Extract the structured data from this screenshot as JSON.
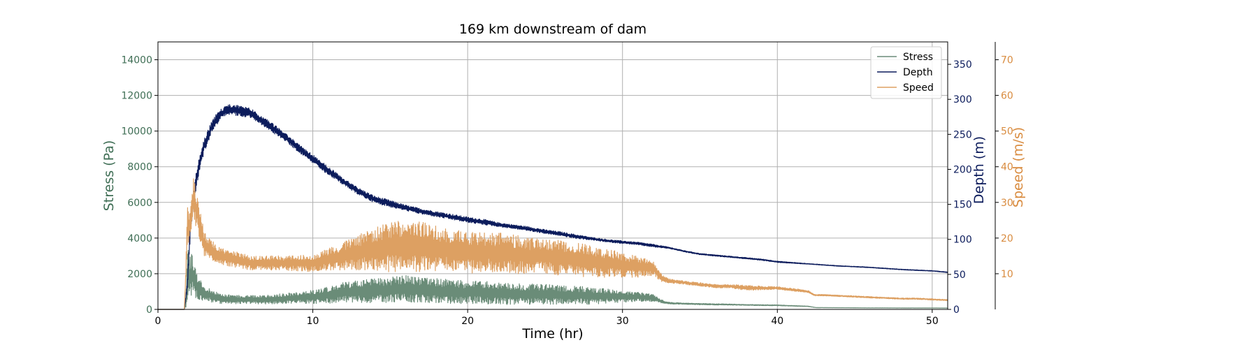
{
  "chart_data": {
    "type": "line",
    "title": "169 km downstream of dam",
    "xlabel": "Time (hr)",
    "xlim": [
      0,
      51
    ],
    "x_ticks": [
      0,
      10,
      20,
      30,
      40,
      50
    ],
    "grid": true,
    "legend_position": "top-right",
    "axes": [
      {
        "id": "stress",
        "side": "left",
        "label": "Stress (Pa)",
        "color": "#3f6e55",
        "ylim": [
          0,
          15000
        ],
        "ticks": [
          0,
          2000,
          4000,
          6000,
          8000,
          10000,
          12000,
          14000
        ]
      },
      {
        "id": "depth",
        "side": "right",
        "label": "Depth (m)",
        "color": "#0c1c5c",
        "ylim": [
          0,
          382
        ],
        "ticks": [
          0,
          50,
          100,
          150,
          200,
          250,
          300,
          350
        ]
      },
      {
        "id": "speed",
        "side": "right-outer",
        "label": "Speed (m/s)",
        "color": "#d98c40",
        "ylim": [
          0,
          75
        ],
        "ticks": [
          10,
          20,
          30,
          40,
          50,
          60,
          70
        ]
      }
    ],
    "series": [
      {
        "name": "Stress",
        "axis": "stress",
        "color": "#6a8c78",
        "x": [
          0,
          1.7,
          1.8,
          1.9,
          2.0,
          2.2,
          2.5,
          3,
          4,
          5,
          6,
          7,
          8,
          9,
          10,
          11,
          12,
          13,
          14,
          15,
          16,
          17,
          18,
          19,
          20,
          21,
          22,
          23,
          24,
          25,
          26,
          27,
          28,
          29,
          30,
          31,
          32,
          32.5,
          33,
          34,
          35,
          36,
          37,
          38,
          39,
          40,
          41,
          42,
          42.5,
          43,
          44,
          45,
          46,
          47,
          48,
          49,
          50,
          51
        ],
        "y": [
          0,
          0,
          300,
          2000,
          1700,
          2000,
          1300,
          900,
          600,
          550,
          550,
          550,
          600,
          650,
          700,
          800,
          950,
          1000,
          1050,
          1100,
          1150,
          1100,
          1050,
          1000,
          950,
          950,
          900,
          850,
          850,
          850,
          800,
          800,
          750,
          750,
          700,
          700,
          650,
          450,
          350,
          320,
          300,
          280,
          270,
          250,
          240,
          230,
          200,
          170,
          100,
          100,
          95,
          90,
          85,
          85,
          80,
          80,
          80,
          75
        ],
        "amp": [
          0,
          0,
          200,
          1800,
          1400,
          1100,
          700,
          420,
          280,
          240,
          240,
          250,
          280,
          320,
          380,
          480,
          560,
          620,
          680,
          720,
          750,
          720,
          700,
          680,
          660,
          640,
          620,
          600,
          580,
          560,
          540,
          520,
          480,
          420,
          300,
          260,
          200,
          90,
          50,
          40,
          40,
          35,
          35,
          30,
          30,
          25,
          20,
          15,
          5,
          5,
          5,
          5,
          5,
          5,
          5,
          5,
          5,
          5
        ]
      },
      {
        "name": "Depth",
        "axis": "depth",
        "color": "#0c1c5c",
        "x": [
          0,
          1.7,
          1.9,
          2.1,
          2.5,
          3.0,
          3.5,
          4.0,
          4.5,
          5.0,
          6.0,
          7.0,
          8.0,
          9.0,
          10,
          11,
          12,
          13,
          14,
          15,
          16,
          17,
          18,
          19,
          20,
          21,
          22,
          23,
          24,
          25,
          26,
          27,
          28,
          29,
          30,
          31,
          32,
          33,
          34,
          35,
          36,
          37,
          38,
          39,
          40,
          42,
          44,
          46,
          48,
          50,
          51
        ],
        "y": [
          0,
          0,
          35,
          120,
          190,
          235,
          262,
          278,
          285,
          285,
          280,
          265,
          250,
          232,
          215,
          198,
          182,
          168,
          157,
          151,
          145,
          140,
          136,
          132,
          128,
          125,
          121,
          118,
          115,
          111,
          108,
          104,
          101,
          98,
          96,
          94,
          91,
          88,
          83,
          79,
          77,
          75,
          73,
          71,
          68,
          65,
          62,
          60,
          57,
          55,
          53
        ],
        "amp": [
          0,
          0,
          6,
          12,
          12,
          10,
          9,
          8,
          8,
          8,
          7,
          7,
          6,
          6,
          6,
          6,
          5,
          5,
          5,
          5,
          4,
          4,
          4,
          4,
          4,
          4,
          3,
          3,
          3,
          3,
          3,
          3,
          2,
          2,
          2,
          2,
          2,
          1,
          1,
          1,
          1,
          1,
          1,
          1,
          1,
          0.5,
          0.5,
          0.5,
          0.5,
          0.5,
          0.5
        ]
      },
      {
        "name": "Speed",
        "axis": "speed",
        "color": "#dda062",
        "x": [
          0,
          1.7,
          1.8,
          1.9,
          2.0,
          2.3,
          2.6,
          3,
          4,
          5,
          6,
          7,
          8,
          9,
          10,
          11,
          12,
          13,
          14,
          15,
          16,
          17,
          18,
          19,
          20,
          21,
          22,
          23,
          24,
          25,
          26,
          27,
          28,
          29,
          30,
          31,
          32,
          32.6,
          33,
          34,
          35,
          36,
          37,
          38,
          39,
          40,
          41,
          42,
          42.4,
          43,
          44,
          45,
          46,
          47,
          48,
          49,
          50,
          51
        ],
        "y": [
          0,
          0,
          10,
          25,
          22,
          31,
          26,
          18,
          15,
          14,
          13,
          13,
          13,
          13,
          13,
          14,
          15,
          16,
          17,
          17.5,
          18,
          17.5,
          17,
          16.5,
          16,
          16,
          16,
          15.5,
          15,
          15,
          14.5,
          14,
          13.5,
          13,
          12.5,
          12,
          11.5,
          8.5,
          8,
          7.5,
          7,
          6.5,
          6.5,
          6,
          6,
          6,
          5.5,
          5,
          4,
          4,
          3.8,
          3.6,
          3.4,
          3.2,
          3,
          3,
          2.8,
          2.6
        ],
        "amp": [
          0,
          0,
          2,
          6,
          5,
          6,
          5,
          3.5,
          2.5,
          2.2,
          2,
          2,
          2,
          2.2,
          2.5,
          3,
          4,
          5,
          6,
          7,
          7.5,
          7,
          6.5,
          6,
          6,
          5.5,
          5.5,
          5.5,
          5,
          5,
          5,
          5,
          4.5,
          4,
          3.5,
          3,
          2,
          1,
          0.6,
          0.5,
          0.5,
          0.5,
          0.5,
          0.8,
          0.5,
          0.4,
          0.4,
          0.3,
          0.2,
          0.2,
          0.2,
          0.2,
          0.2,
          0.2,
          0.2,
          0.2,
          0.2,
          0.2
        ]
      }
    ]
  }
}
